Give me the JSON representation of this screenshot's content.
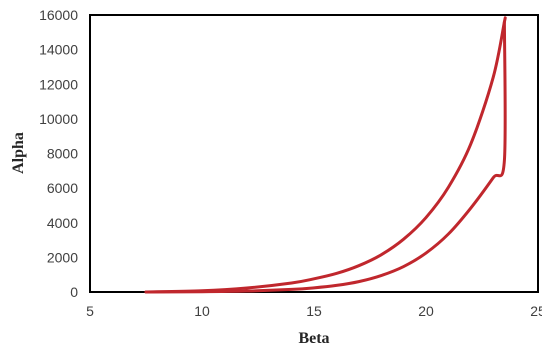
{
  "chart_data": {
    "type": "line",
    "title": "",
    "xlabel": "Beta",
    "ylabel": "Alpha",
    "xlim": [
      5,
      25
    ],
    "ylim": [
      0,
      16000
    ],
    "xticks": [
      5,
      10,
      15,
      20,
      25
    ],
    "yticks": [
      0,
      2000,
      4000,
      6000,
      8000,
      10000,
      12000,
      14000,
      16000
    ],
    "grid": false,
    "legend": "none",
    "series": [
      {
        "color": "#c0272d",
        "x": [
          7.5,
          10,
          12,
          14,
          15,
          16,
          17,
          18,
          19,
          20,
          21,
          22,
          23,
          23.5,
          23.5
        ],
        "y": [
          0,
          70,
          230,
          520,
          760,
          1070,
          1520,
          2150,
          3050,
          4300,
          6050,
          8550,
          12400,
          15600,
          15600
        ]
      },
      {
        "color": "#c0272d",
        "x": [
          23.5,
          23.5,
          23,
          22,
          21,
          20,
          19,
          18,
          17,
          16,
          15,
          14,
          12,
          10,
          7.5
        ],
        "y": [
          15600,
          7600,
          6600,
          4850,
          3350,
          2250,
          1470,
          950,
          600,
          380,
          240,
          150,
          55,
          15,
          0
        ]
      }
    ]
  }
}
